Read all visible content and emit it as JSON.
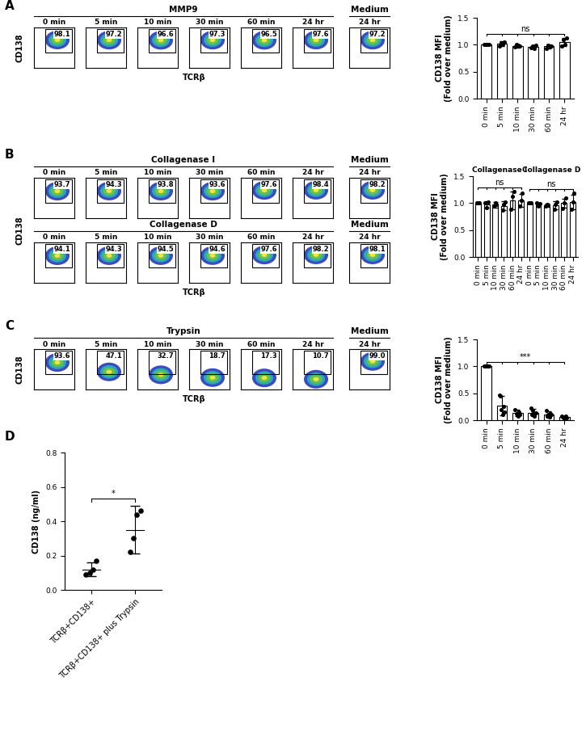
{
  "panel_letters": [
    "A",
    "B",
    "C",
    "D"
  ],
  "flow_panels": [
    {
      "y_label": "CD138",
      "x_label": "TCRβ",
      "rows": [
        {
          "groups": [
            {
              "title": "MMP9",
              "times": [
                "0 min",
                "5 min",
                "10 min",
                "30 min",
                "60 min",
                "24 hr"
              ],
              "gates": [
                98.1,
                97.2,
                96.6,
                97.3,
                96.5,
                97.6
              ]
            },
            {
              "title": "Medium",
              "times": [
                "24 hr"
              ],
              "gates": [
                97.2
              ]
            }
          ]
        }
      ]
    },
    {
      "y_label": "CD138",
      "x_label": "TCRβ",
      "rows": [
        {
          "groups": [
            {
              "title": "Collagenase I",
              "times": [
                "0 min",
                "5 min",
                "10 min",
                "30 min",
                "60 min",
                "24 hr"
              ],
              "gates": [
                93.7,
                94.3,
                93.8,
                93.6,
                97.6,
                98.4
              ]
            },
            {
              "title": "Medium",
              "times": [
                "24 hr"
              ],
              "gates": [
                98.2
              ]
            }
          ]
        },
        {
          "groups": [
            {
              "title": "Collagenase D",
              "times": [
                "0 min",
                "5 min",
                "10 min",
                "30 min",
                "60 min",
                "24 hr"
              ],
              "gates": [
                94.1,
                94.3,
                94.5,
                94.6,
                97.6,
                98.2
              ]
            },
            {
              "title": "Medium",
              "times": [
                "24 hr"
              ],
              "gates": [
                98.1
              ]
            }
          ]
        }
      ]
    },
    {
      "y_label": "CD138",
      "x_label": "TCRβ",
      "rows": [
        {
          "groups": [
            {
              "title": "Trypsin",
              "times": [
                "0 min",
                "5 min",
                "10 min",
                "30 min",
                "60 min",
                "24 hr"
              ],
              "gates": [
                93.6,
                47.1,
                32.7,
                18.7,
                17.3,
                10.7
              ]
            },
            {
              "title": "Medium",
              "times": [
                "24 hr"
              ],
              "gates": [
                99.0
              ]
            }
          ]
        }
      ]
    }
  ],
  "chart_data": [
    {
      "type": "bar",
      "y_label": "CD138 MFI\n(Fold over medium)",
      "categories": [
        "0 min",
        "5 min",
        "10 min",
        "30 min",
        "60 min",
        "24 hr"
      ],
      "values": [
        1.0,
        1.02,
        0.98,
        0.96,
        0.97,
        1.05
      ],
      "errors": [
        0.01,
        0.04,
        0.03,
        0.03,
        0.04,
        0.08
      ],
      "points": [
        [
          1.0,
          1.0,
          1.0,
          1.0
        ],
        [
          0.98,
          1.04,
          1.0,
          1.05
        ],
        [
          0.96,
          1.0,
          0.99,
          0.97
        ],
        [
          0.95,
          0.97,
          0.93,
          0.99
        ],
        [
          0.93,
          0.99,
          0.98,
          0.97
        ],
        [
          0.97,
          1.1,
          1.0,
          1.12
        ]
      ],
      "color": "#ffffff",
      "marker": "o",
      "ylim": [
        0.0,
        1.5
      ],
      "yticks": [
        0.0,
        0.5,
        1.0,
        1.5
      ],
      "comparisons": [
        {
          "label": "ns",
          "start": 0,
          "end": 5
        }
      ]
    },
    {
      "type": "bar",
      "y_label": "CD138 MFI\n(Fold over medium)",
      "categories": [
        "0 min",
        "5 min",
        "10 min",
        "30 min",
        "60 min",
        "24 hr",
        "0 min",
        "5 min",
        "10 min",
        "30 min",
        "60 min",
        "24 hr"
      ],
      "values": [
        1.0,
        0.98,
        0.97,
        0.95,
        1.05,
        1.05,
        1.0,
        0.98,
        0.96,
        0.96,
        1.0,
        1.02
      ],
      "errors": [
        0.01,
        0.06,
        0.05,
        0.08,
        0.17,
        0.12,
        0.01,
        0.03,
        0.03,
        0.07,
        0.08,
        0.14
      ],
      "points": [
        [
          1.0,
          1.0,
          1.0
        ],
        [
          1.0,
          0.92,
          1.02
        ],
        [
          0.95,
          1.0,
          0.97
        ],
        [
          0.87,
          0.97,
          1.02
        ],
        [
          0.88,
          1.12,
          1.22
        ],
        [
          0.95,
          1.05,
          1.18
        ],
        [
          1.0,
          1.0,
          1.0
        ],
        [
          1.0,
          0.95,
          0.99
        ],
        [
          0.95,
          0.97,
          0.96
        ],
        [
          0.88,
          0.98,
          1.02
        ],
        [
          0.9,
          1.0,
          1.1
        ],
        [
          0.88,
          1.02,
          1.18
        ]
      ],
      "color": "#ffffff",
      "marker": "o",
      "ylim": [
        0.0,
        1.5
      ],
      "yticks": [
        0.0,
        0.5,
        1.0,
        1.5
      ],
      "group_labels": [
        {
          "label": "Collagenase I",
          "start": 0,
          "end": 5
        },
        {
          "label": "Collagenase D",
          "start": 6,
          "end": 11
        }
      ],
      "comparisons": [
        {
          "label": "ns",
          "start": 0,
          "end": 5
        },
        {
          "label": "ns",
          "start": 6,
          "end": 11
        }
      ]
    },
    {
      "type": "bar",
      "y_label": "CD138 MFI\n(Fold over medium)",
      "categories": [
        "0 min",
        "5 min",
        "10 min",
        "30 min",
        "60 min",
        "24 hr"
      ],
      "values": [
        1.0,
        0.27,
        0.13,
        0.14,
        0.11,
        0.06
      ],
      "errors": [
        0.01,
        0.18,
        0.06,
        0.07,
        0.06,
        0.02
      ],
      "points": [
        [
          1.0,
          1.0,
          1.0,
          1.0,
          1.0,
          1.0
        ],
        [
          0.47,
          0.45,
          0.2,
          0.1,
          0.25,
          0.15
        ],
        [
          0.2,
          0.12,
          0.1,
          0.08,
          0.15,
          0.1
        ],
        [
          0.22,
          0.1,
          0.18,
          0.12,
          0.08,
          0.13
        ],
        [
          0.18,
          0.08,
          0.1,
          0.06,
          0.12,
          0.1
        ],
        [
          0.08,
          0.05,
          0.06,
          0.04,
          0.07,
          0.05
        ]
      ],
      "color": "#ffffff",
      "marker": "o",
      "ylim": [
        0.0,
        1.5
      ],
      "yticks": [
        0.0,
        0.5,
        1.0,
        1.5
      ],
      "comparisons": [
        {
          "label": "***",
          "start": 0,
          "end": 5
        }
      ]
    },
    {
      "type": "scatter",
      "y_label": "CD138 (ng/ml)",
      "categories": [
        "TCRβ+CD138+",
        "TCRβ+CD138+ plus Trypsin"
      ],
      "values": [
        0.12,
        0.35
      ],
      "errors": [
        0.04,
        0.14
      ],
      "points": [
        [
          0.09,
          0.1,
          0.12,
          0.17
        ],
        [
          0.22,
          0.3,
          0.44,
          0.46
        ]
      ],
      "color": "#000000",
      "marker": "o",
      "ylim": [
        0.0,
        0.8
      ],
      "yticks": [
        0.0,
        0.2,
        0.4,
        0.6,
        0.8
      ],
      "comparisons": [
        {
          "label": "*",
          "start": 0,
          "end": 1
        }
      ]
    }
  ]
}
